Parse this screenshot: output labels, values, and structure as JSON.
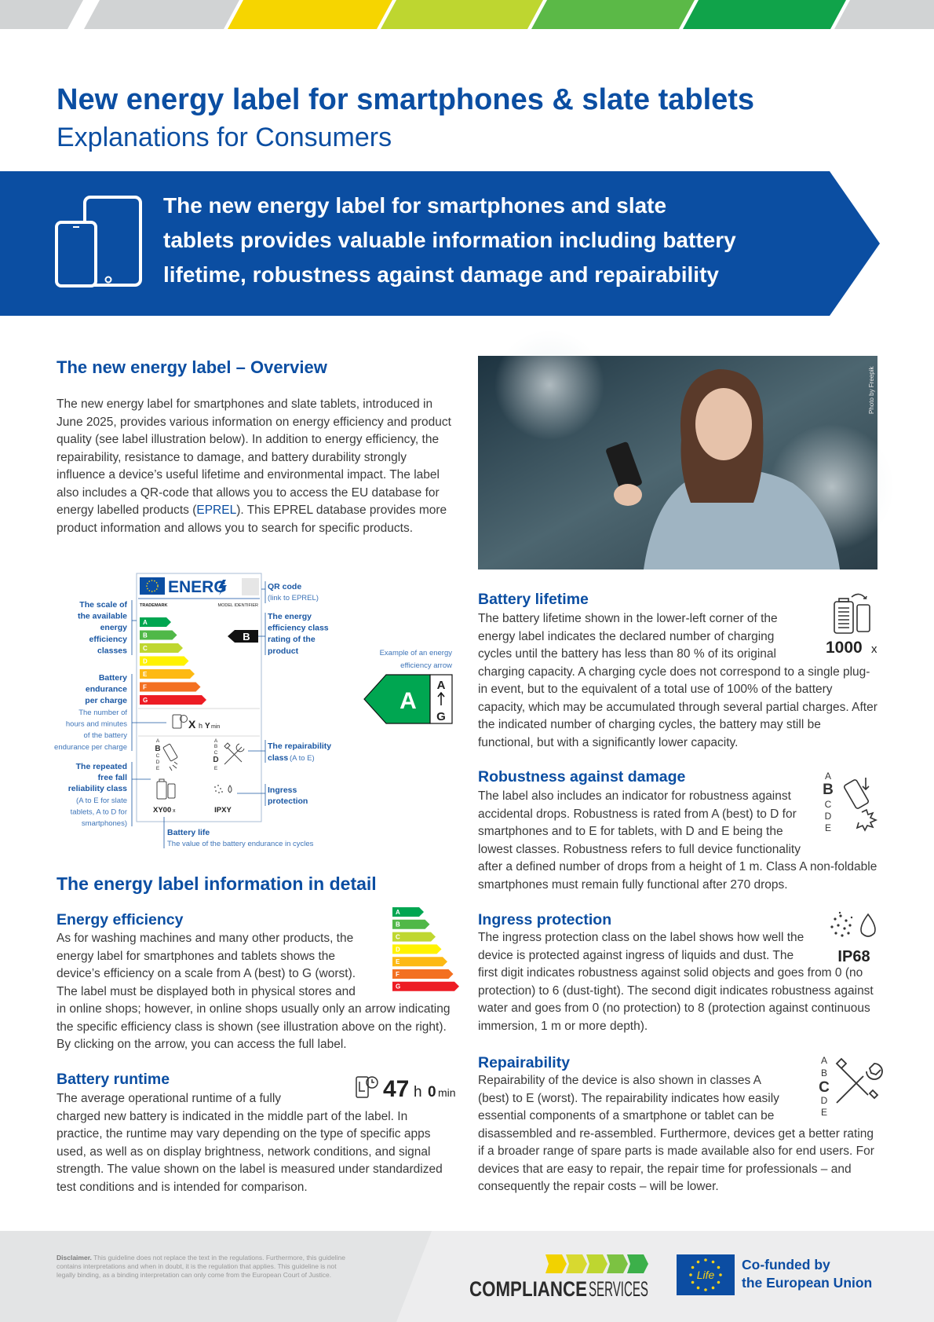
{
  "header": {
    "title": "New energy label for smartphones & slate tablets",
    "subtitle": "Explanations for Consumers"
  },
  "banner": {
    "lines": [
      "The new energy label for smartphones and slate",
      "tablets provides valuable information including battery",
      "lifetime, robustness against damage and repairability"
    ]
  },
  "overview": {
    "heading": "The new energy label – Overview",
    "text_before": "The new energy label for smartphones and slate tablets, introduced in June 2025, provides various information on energy efficiency and product quality (see label illustration below). In addition to energy efficiency, the repairability, resistance to damage, and battery durability strongly influence a device’s useful lifetime and environmental impact. The label also includes a QR-code that allows you to access the EU database for energy labelled products (",
    "link": "EPREL",
    "text_after": "). This EPREL database provides more product information and allows you to search for specific products."
  },
  "label_illustration": {
    "energ": "ENERG",
    "trademark": "TRADEMARK",
    "model_identifier": "MODEL IDENTIFIER",
    "classes": [
      "A",
      "B",
      "C",
      "D",
      "E",
      "F",
      "G"
    ],
    "rating": "B",
    "endurance": {
      "hours": "X",
      "hours_unit": "h",
      "minutes": "Y",
      "minutes_unit": "min"
    },
    "robustness_scale": [
      "A",
      "B",
      "C",
      "D",
      "E"
    ],
    "repairability_scale": [
      "A",
      "B",
      "C",
      "D",
      "E"
    ],
    "battery_cycles": "XY00",
    "battery_cycles_unit": "x",
    "ingress": "IPXY",
    "callouts": {
      "qr_code": "QR code",
      "qr_link": "(link to EPREL)",
      "scale": [
        "The scale of",
        "the available",
        "energy",
        "efficiency",
        "classes"
      ],
      "rating": [
        "The energy",
        "efficiency class",
        "rating of the",
        "product"
      ],
      "endurance": [
        "Battery",
        "endurance",
        "per charge"
      ],
      "endurance_note": [
        "The number of",
        "hours and minutes",
        "of the battery",
        "endurance per charge"
      ],
      "free_fall": [
        "The repeated",
        "free fall",
        "reliability class"
      ],
      "free_fall_note": [
        "(A to E for slate",
        "tablets, A to D for",
        "smartphones)"
      ],
      "repairability": "The repairability",
      "repairability_class": "class",
      "repairability_note": "(A to E)",
      "ingress": [
        "Ingress",
        "protection"
      ],
      "battery_life": "Battery life",
      "battery_life_note": "The value of the battery endurance in cycles"
    },
    "example_arrow": {
      "caption": [
        "Example of an energy",
        "efficiency arrow"
      ],
      "class": "A",
      "scale_top": "A",
      "scale_bottom": "G"
    }
  },
  "photo": {
    "credit": "Photo by Freepik"
  },
  "detail": {
    "heading": "The energy label information in detail"
  },
  "energy_efficiency": {
    "heading": "Energy efficiency",
    "text": "As for washing machines and many other products, the energy label for smartphones and tablets shows the device’s efficiency on a scale from A (best) to G (worst). The label must be displayed both in physical stores and in online shops; however, in online shops usually only an arrow indicating the specific efficiency class is shown (see illustration above on the right). By clicking on the arrow, you can access the full label.",
    "classes": [
      "A",
      "B",
      "C",
      "D",
      "E",
      "F",
      "G"
    ]
  },
  "battery_runtime": {
    "heading": "Battery runtime",
    "text": "The average operational runtime of a fully charged new battery is indicated in the middle part of the label. In practice, the runtime may vary depending on the type of specific apps used, as well as on display brightness, network conditions, and signal strength. The value shown on the label is measured under standardized test conditions and is intended for comparison.",
    "hours": 47,
    "hours_unit": "h",
    "minutes": 0,
    "minutes_unit": "min"
  },
  "battery_lifetime": {
    "heading": "Battery lifetime",
    "text": "The battery lifetime shown in the lower-left corner of the energy label indicates the declared number of charging cycles until the battery has less than 80 % of its original charging capacity. A charging cycle does not correspond to a single plug-in event, but to the equivalent of a total use of 100% of the battery capacity, which may be accumulated through several partial charges. After the indicated number of charging cycles, the battery may still be functional, but with a significantly lower capacity.",
    "cycles": 1000,
    "cycles_unit": "x"
  },
  "robustness": {
    "heading": "Robustness against damage",
    "text": "The label also includes an indicator for robustness against accidental drops. Robustness is rated from A (best) to D for smartphones and to E for tablets, with D and E being the lowest classes. Robustness refers to full device functionality after a defined number of drops from a height of 1 m. Class A non-foldable smartphones must remain fully functional after 270 drops.",
    "scale": [
      "A",
      "B",
      "C",
      "D",
      "E"
    ]
  },
  "ingress_protection": {
    "heading": "Ingress protection",
    "text": "The ingress protection class on the label shows how well the device is protected against ingress of liquids and dust. The first digit indicates robustness against solid objects and goes from 0 (no protection) to 6 (dust-tight). The second digit indicates robustness against water and goes from 0 (no protection) to 8 (protection against continuous immersion, 1 m or more depth).",
    "rating": "IP68"
  },
  "repairability": {
    "heading": "Repairability",
    "text": "Repairability of the device is also shown in classes A (best) to E (worst). The repairability indicates how easily essential components of a smartphone or tablet can be disassembled and re-assembled. Furthermore, devices get a better rating if a broader range of spare parts is made available also for end users. For devices that are easy to repair, the repair time for professionals – and consequently the repair costs – will be lower.",
    "scale": [
      "A",
      "B",
      "C",
      "D",
      "E"
    ]
  },
  "footer": {
    "disclaimer_label": "Disclaimer.",
    "disclaimer_text": "This guideline does not replace the text in the regulations. Furthermore, this guideline contains interpretations and when in doubt, it is the regulation that applies. This guideline is not legally binding, as a binding interpretation can only come from the European Court of Justice.",
    "compliance": "COMPLIANCE",
    "services": "SERVICES",
    "life": "Life",
    "cofunded": [
      "Co-funded by",
      "the European Union"
    ]
  }
}
